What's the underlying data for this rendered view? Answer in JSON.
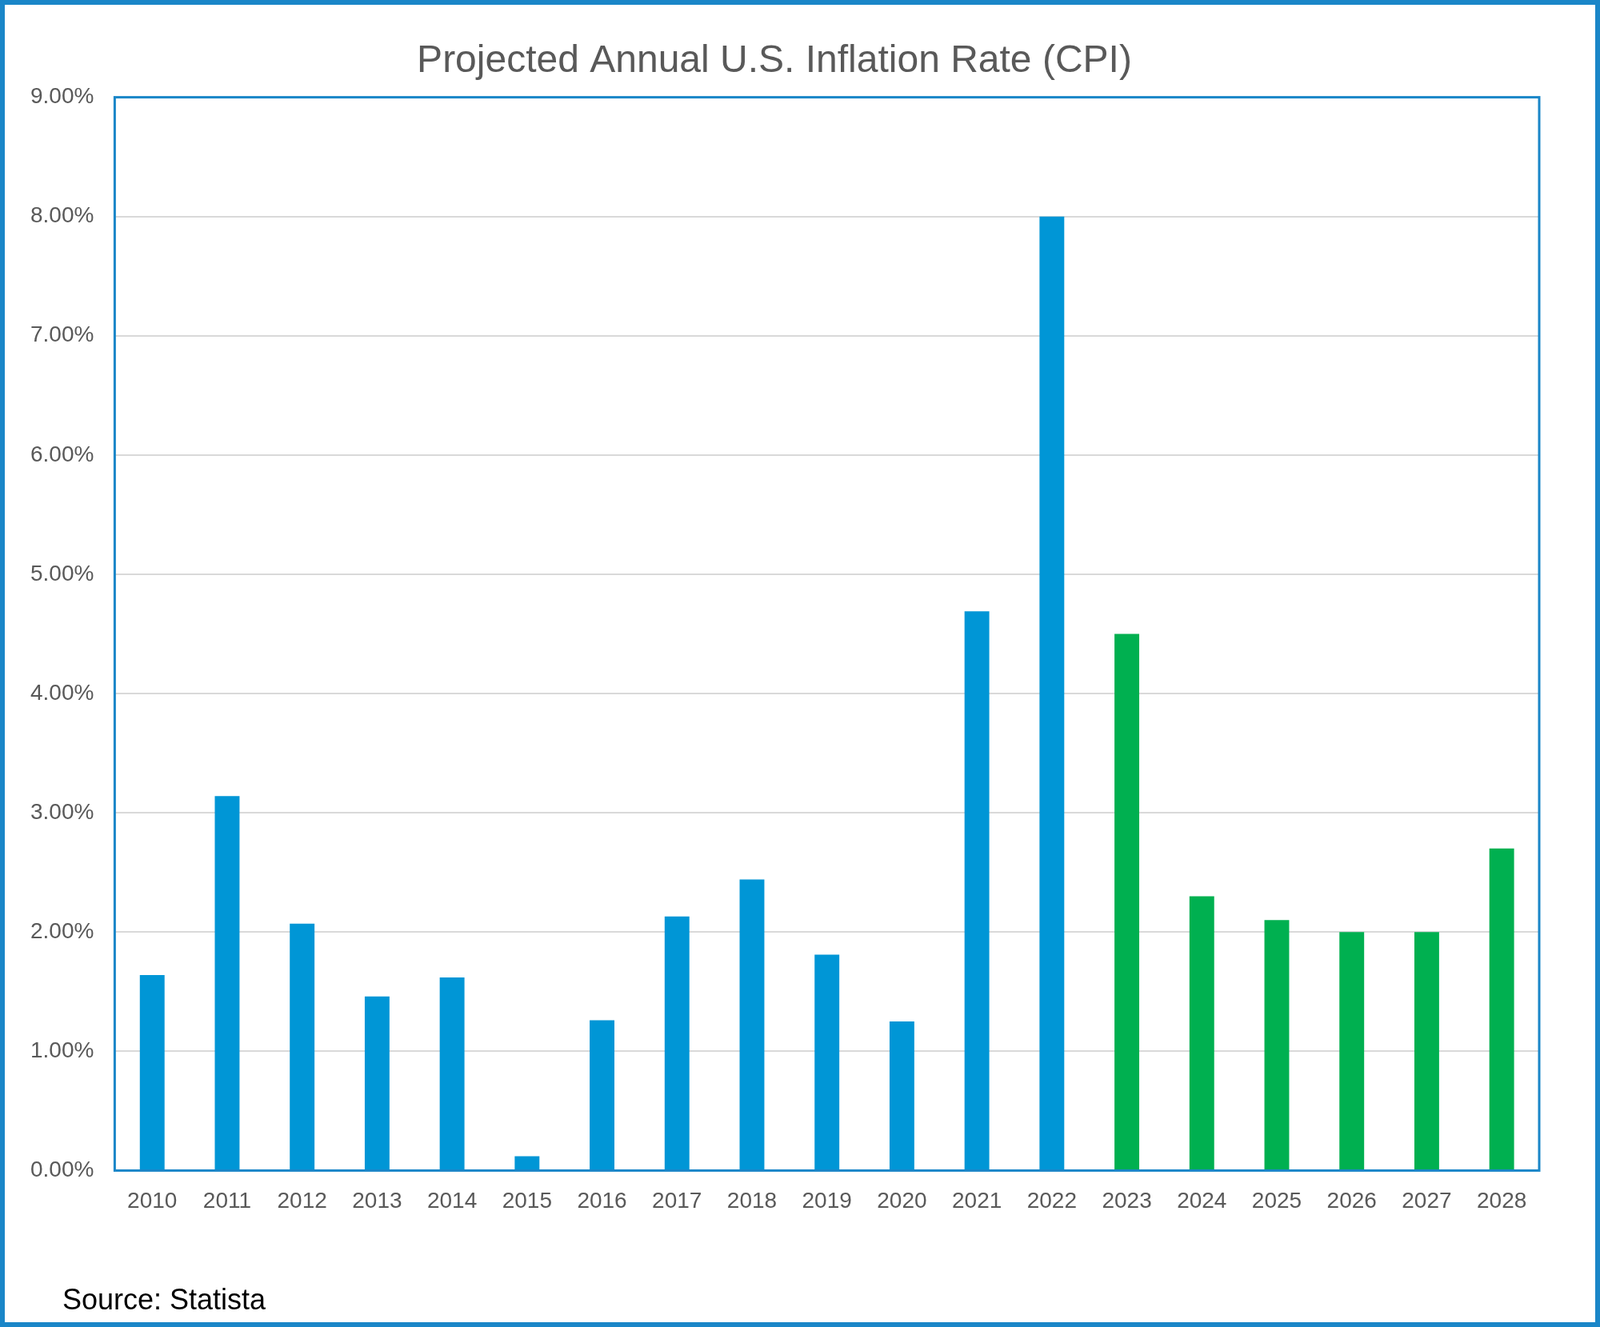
{
  "chart_data": {
    "type": "bar",
    "title": "Projected Annual U.S. Inflation Rate (CPI)",
    "source": "Source: Statista",
    "categories": [
      "2010",
      "2011",
      "2012",
      "2013",
      "2014",
      "2015",
      "2016",
      "2017",
      "2018",
      "2019",
      "2020",
      "2021",
      "2022",
      "2023",
      "2024",
      "2025",
      "2026",
      "2027",
      "2028"
    ],
    "values": [
      1.64,
      3.14,
      2.07,
      1.46,
      1.62,
      0.12,
      1.26,
      2.13,
      2.44,
      1.81,
      1.25,
      4.69,
      8.0,
      4.5,
      2.3,
      2.1,
      2.0,
      2.0,
      2.7
    ],
    "colors": [
      "#0096d6",
      "#0096d6",
      "#0096d6",
      "#0096d6",
      "#0096d6",
      "#0096d6",
      "#0096d6",
      "#0096d6",
      "#0096d6",
      "#0096d6",
      "#0096d6",
      "#0096d6",
      "#0096d6",
      "#00b050",
      "#00b050",
      "#00b050",
      "#00b050",
      "#00b050",
      "#00b050"
    ],
    "ylim": [
      0,
      9
    ],
    "yticks": [
      {
        "value": 0,
        "label": "0.00%"
      },
      {
        "value": 1,
        "label": "1.00%"
      },
      {
        "value": 2,
        "label": "2.00%"
      },
      {
        "value": 3,
        "label": "3.00%"
      },
      {
        "value": 4,
        "label": "4.00%"
      },
      {
        "value": 5,
        "label": "5.00%"
      },
      {
        "value": 6,
        "label": "6.00%"
      },
      {
        "value": 7,
        "label": "7.00%"
      },
      {
        "value": 8,
        "label": "8.00%"
      },
      {
        "value": 9,
        "label": "9.00%"
      }
    ],
    "grid": true
  }
}
